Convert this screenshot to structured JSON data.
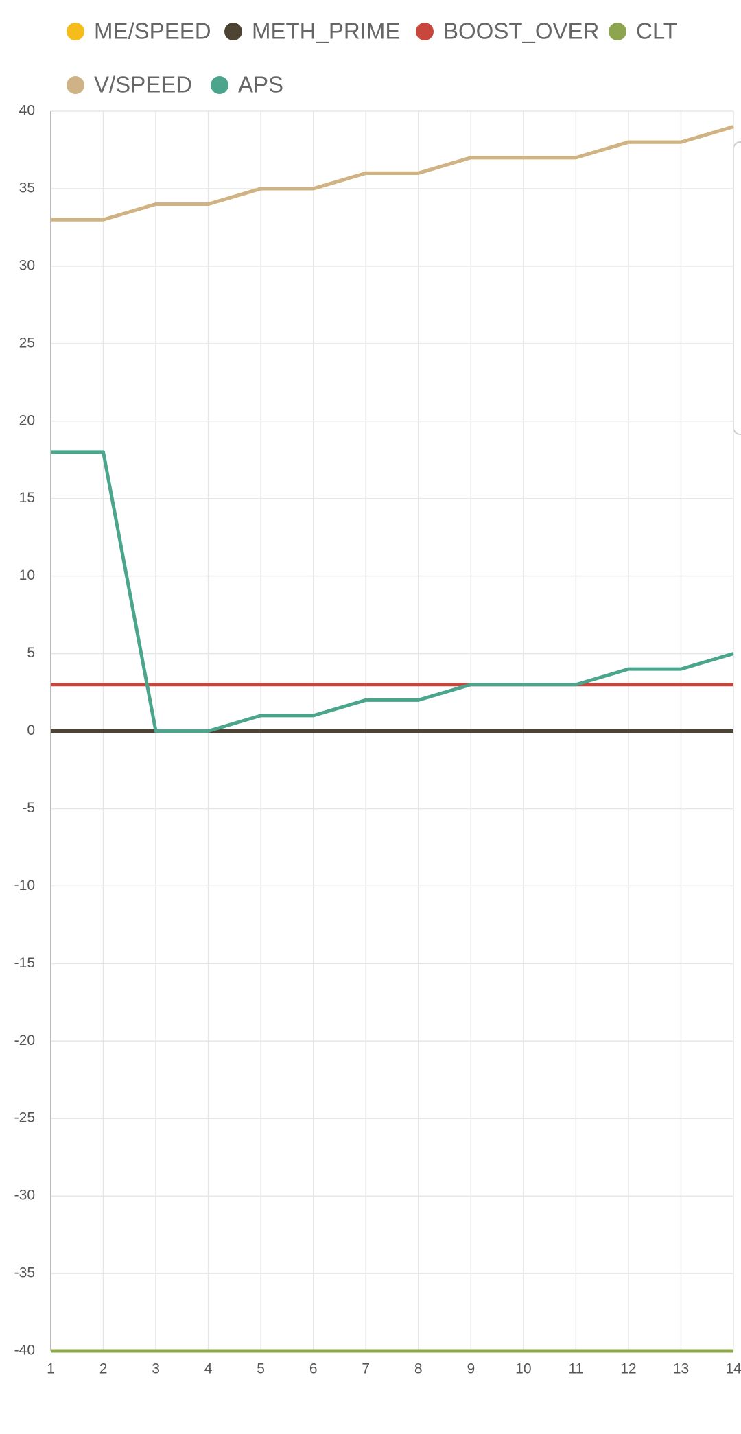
{
  "chart_data": {
    "type": "line",
    "x": [
      1,
      2,
      3,
      4,
      5,
      6,
      7,
      8,
      9,
      10,
      11,
      12,
      13,
      14
    ],
    "xlim": [
      1,
      14
    ],
    "xticks": [
      1,
      2,
      3,
      4,
      5,
      6,
      7,
      8,
      9,
      10,
      11,
      12,
      13,
      14
    ],
    "ylim": [
      -40,
      40
    ],
    "yticks": [
      -40,
      -35,
      -30,
      -25,
      -20,
      -15,
      -10,
      -5,
      0,
      5,
      10,
      15,
      20,
      25,
      30,
      35,
      40
    ],
    "grid": true,
    "series": [
      {
        "name": "ME/SPEED",
        "color": "#f5bc1c",
        "values": [
          33,
          33,
          34,
          34,
          35,
          35,
          36,
          36,
          37,
          37,
          37,
          38,
          38,
          39
        ]
      },
      {
        "name": "METH_PRIME",
        "color": "#4d4434",
        "values": [
          0,
          0,
          0,
          0,
          0,
          0,
          0,
          0,
          0,
          0,
          0,
          0,
          0,
          0
        ]
      },
      {
        "name": "BOOST_OVER",
        "color": "#c9463d",
        "values": [
          3,
          3,
          3,
          3,
          3,
          3,
          3,
          3,
          3,
          3,
          3,
          3,
          3,
          3
        ]
      },
      {
        "name": "CLT",
        "color": "#8ea54f",
        "values": [
          -40,
          -40,
          -40,
          -40,
          -40,
          -40,
          -40,
          -40,
          -40,
          -40,
          -40,
          -40,
          -40,
          -40
        ]
      },
      {
        "name": "V/SPEED",
        "color": "#cfb285",
        "values": [
          33,
          33,
          34,
          34,
          35,
          35,
          36,
          36,
          37,
          37,
          37,
          38,
          38,
          39
        ]
      },
      {
        "name": "APS",
        "color": "#4aa58c",
        "values": [
          18,
          18,
          0,
          0,
          1,
          1,
          2,
          2,
          3,
          3,
          3,
          4,
          4,
          5
        ]
      }
    ]
  }
}
